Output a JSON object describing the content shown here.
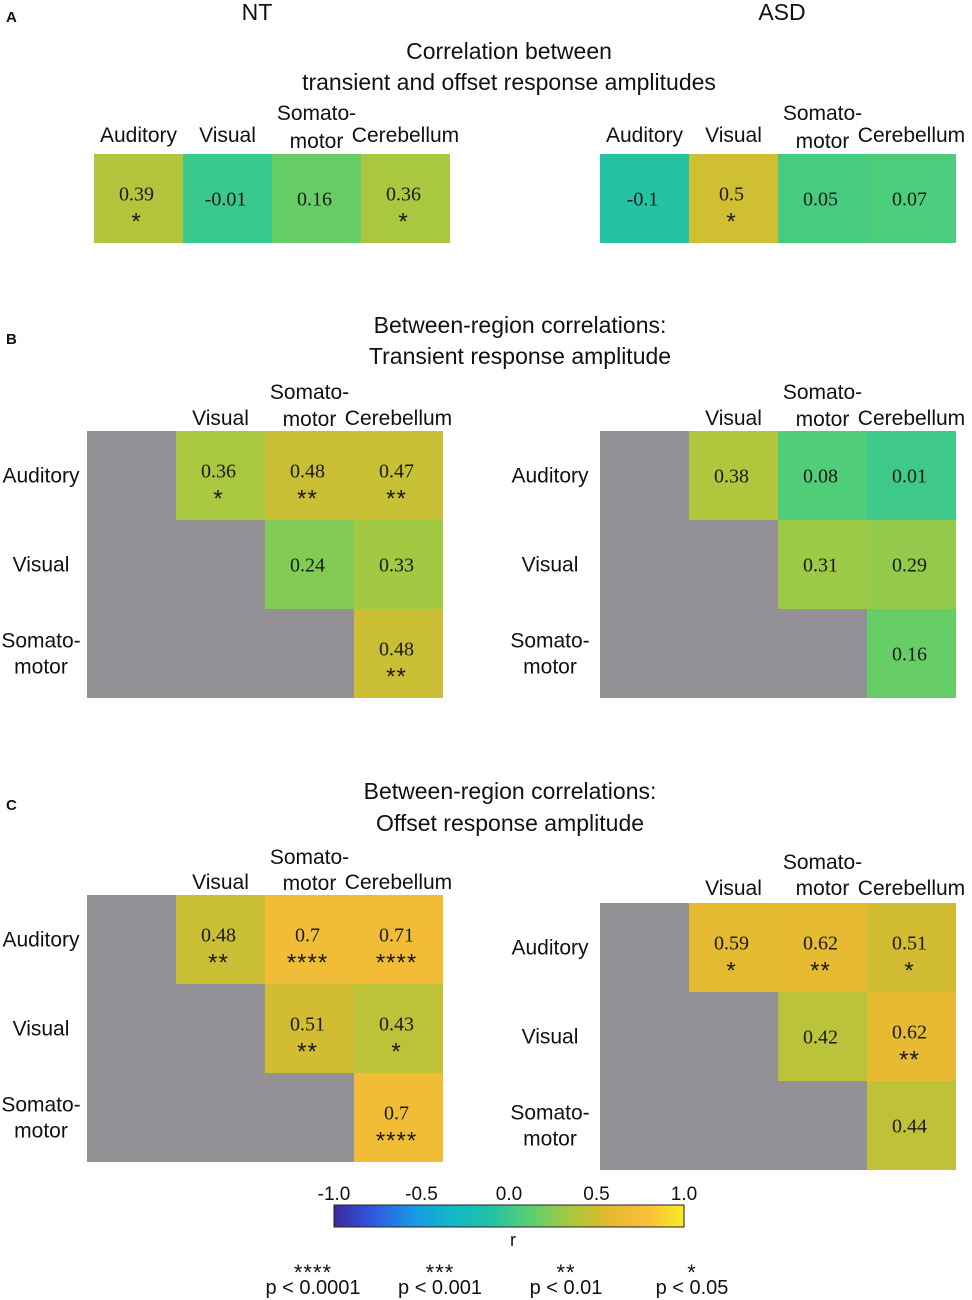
{
  "groups": {
    "nt": "NT",
    "asd": "ASD"
  },
  "panels": {
    "A": {
      "letter": "A",
      "title": [
        "Correlation between",
        "transient and offset response amplitudes"
      ]
    },
    "B": {
      "letter": "B",
      "title": [
        "Between-region correlations:",
        "Transient response amplitude"
      ]
    },
    "C": {
      "letter": "C",
      "title": [
        "Between-region correlations:",
        "Offset response amplitude"
      ]
    }
  },
  "colors": {
    "gray": "#939195",
    "cmap": [
      "#3b2a9b",
      "#2f58e0",
      "#1a96e3",
      "#10b7c8",
      "#21c2a6",
      "#56cf72",
      "#a2c941",
      "#dfba2e",
      "#fbbd3a",
      "#f5ec23"
    ]
  },
  "chart_data": [
    {
      "type": "heatmap",
      "id": "A-NT",
      "panel": "A",
      "group": "NT",
      "columns": [
        "Auditory",
        "Visual",
        "Somato-\nmotor",
        "Cerebellum"
      ],
      "cells": [
        {
          "row": 0,
          "col": 0,
          "r": 0.39,
          "label": "0.39",
          "stars": "*"
        },
        {
          "row": 0,
          "col": 1,
          "r": -0.01,
          "label": "-0.01",
          "stars": ""
        },
        {
          "row": 0,
          "col": 2,
          "r": 0.16,
          "label": "0.16",
          "stars": ""
        },
        {
          "row": 0,
          "col": 3,
          "r": 0.36,
          "label": "0.36",
          "stars": "*"
        }
      ]
    },
    {
      "type": "heatmap",
      "id": "A-ASD",
      "panel": "A",
      "group": "ASD",
      "columns": [
        "Auditory",
        "Visual",
        "Somato-\nmotor",
        "Cerebellum"
      ],
      "cells": [
        {
          "row": 0,
          "col": 0,
          "r": -0.1,
          "label": "-0.1",
          "stars": ""
        },
        {
          "row": 0,
          "col": 1,
          "r": 0.5,
          "label": "0.5",
          "stars": "*"
        },
        {
          "row": 0,
          "col": 2,
          "r": 0.05,
          "label": "0.05",
          "stars": ""
        },
        {
          "row": 0,
          "col": 3,
          "r": 0.07,
          "label": "0.07",
          "stars": ""
        }
      ]
    },
    {
      "type": "heatmap",
      "id": "B-NT",
      "panel": "B",
      "group": "NT",
      "columns": [
        "",
        "Visual",
        "Somato-\nmotor",
        "Cerebellum"
      ],
      "rows": [
        "Auditory",
        "Visual",
        "Somato-\nmotor"
      ],
      "cells": [
        {
          "row": 0,
          "col": 1,
          "r": 0.36,
          "label": "0.36",
          "stars": "*"
        },
        {
          "row": 0,
          "col": 2,
          "r": 0.48,
          "label": "0.48",
          "stars": "**"
        },
        {
          "row": 0,
          "col": 3,
          "r": 0.47,
          "label": "0.47",
          "stars": "**"
        },
        {
          "row": 1,
          "col": 2,
          "r": 0.24,
          "label": "0.24",
          "stars": ""
        },
        {
          "row": 1,
          "col": 3,
          "r": 0.33,
          "label": "0.33",
          "stars": ""
        },
        {
          "row": 2,
          "col": 3,
          "r": 0.48,
          "label": "0.48",
          "stars": "**"
        }
      ]
    },
    {
      "type": "heatmap",
      "id": "B-ASD",
      "panel": "B",
      "group": "ASD",
      "columns": [
        "",
        "Visual",
        "Somato-\nmotor",
        "Cerebellum"
      ],
      "rows": [
        "Auditory",
        "Visual",
        "Somato-\nmotor"
      ],
      "cells": [
        {
          "row": 0,
          "col": 1,
          "r": 0.38,
          "label": "0.38",
          "stars": ""
        },
        {
          "row": 0,
          "col": 2,
          "r": 0.08,
          "label": "0.08",
          "stars": ""
        },
        {
          "row": 0,
          "col": 3,
          "r": 0.01,
          "label": "0.01",
          "stars": ""
        },
        {
          "row": 1,
          "col": 2,
          "r": 0.31,
          "label": "0.31",
          "stars": ""
        },
        {
          "row": 1,
          "col": 3,
          "r": 0.29,
          "label": "0.29",
          "stars": ""
        },
        {
          "row": 2,
          "col": 3,
          "r": 0.16,
          "label": "0.16",
          "stars": ""
        }
      ]
    },
    {
      "type": "heatmap",
      "id": "C-NT",
      "panel": "C",
      "group": "NT",
      "columns": [
        "",
        "Visual",
        "Somato-\nmotor",
        "Cerebellum"
      ],
      "rows": [
        "Auditory",
        "Visual",
        "Somato-\nmotor"
      ],
      "cells": [
        {
          "row": 0,
          "col": 1,
          "r": 0.48,
          "label": "0.48",
          "stars": "**"
        },
        {
          "row": 0,
          "col": 2,
          "r": 0.7,
          "label": "0.7",
          "stars": "****"
        },
        {
          "row": 0,
          "col": 3,
          "r": 0.71,
          "label": "0.71",
          "stars": "****"
        },
        {
          "row": 1,
          "col": 2,
          "r": 0.51,
          "label": "0.51",
          "stars": "**"
        },
        {
          "row": 1,
          "col": 3,
          "r": 0.43,
          "label": "0.43",
          "stars": "*"
        },
        {
          "row": 2,
          "col": 3,
          "r": 0.7,
          "label": "0.7",
          "stars": "****"
        }
      ]
    },
    {
      "type": "heatmap",
      "id": "C-ASD",
      "panel": "C",
      "group": "ASD",
      "columns": [
        "",
        "Visual",
        "Somato-\nmotor",
        "Cerebellum"
      ],
      "rows": [
        "Auditory",
        "Visual",
        "Somato-\nmotor"
      ],
      "cells": [
        {
          "row": 0,
          "col": 1,
          "r": 0.59,
          "label": "0.59",
          "stars": "*"
        },
        {
          "row": 0,
          "col": 2,
          "r": 0.62,
          "label": "0.62",
          "stars": "**"
        },
        {
          "row": 0,
          "col": 3,
          "r": 0.51,
          "label": "0.51",
          "stars": "*"
        },
        {
          "row": 1,
          "col": 2,
          "r": 0.42,
          "label": "0.42",
          "stars": ""
        },
        {
          "row": 1,
          "col": 3,
          "r": 0.62,
          "label": "0.62",
          "stars": "**"
        },
        {
          "row": 2,
          "col": 3,
          "r": 0.44,
          "label": "0.44",
          "stars": ""
        }
      ]
    }
  ],
  "colorbar": {
    "ticks": [
      "-1.0",
      "-0.5",
      "0.0",
      "0.5",
      "1.0"
    ],
    "range": [
      -1.0,
      1.0
    ],
    "label": "r"
  },
  "significance": [
    {
      "stars": "****",
      "p": "p < 0.0001"
    },
    {
      "stars": "***",
      "p": "p < 0.001"
    },
    {
      "stars": "**",
      "p": "p < 0.01"
    },
    {
      "stars": "*",
      "p": "p < 0.05"
    }
  ]
}
